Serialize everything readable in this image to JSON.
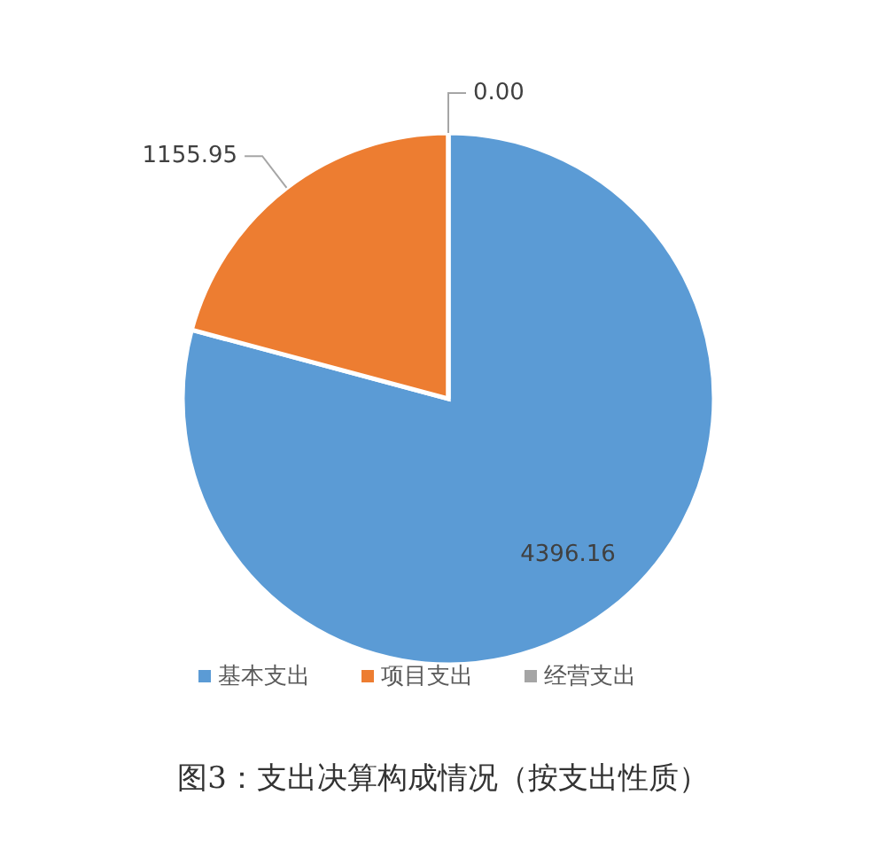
{
  "chart_data": {
    "type": "pie",
    "title": "图3：支出决算构成情况（按支出性质）",
    "categories": [
      "基本支出",
      "项目支出",
      "经营支出"
    ],
    "values": [
      4396.16,
      1155.95,
      0
    ],
    "value_labels": [
      "4396.16",
      "1155.95",
      "0.00"
    ],
    "colors": [
      "#5b9bd5",
      "#ed7d31",
      "#a5a5a5"
    ],
    "legend": "bottom"
  }
}
